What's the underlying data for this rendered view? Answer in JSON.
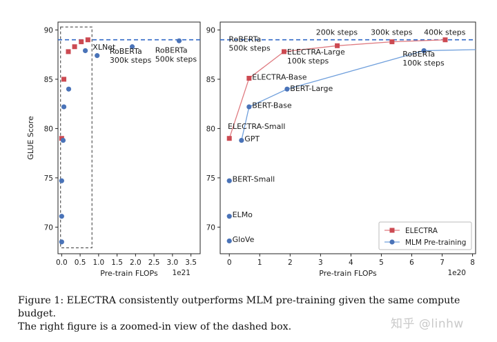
{
  "caption": {
    "line1": "Figure 1: ELECTRA consistently outperforms MLM pre-training given the same compute budget.",
    "line2": "The right figure is a zoomed-in view of the dashed box."
  },
  "watermark": "知乎 @linhw",
  "colors": {
    "electra": "#cc4a52",
    "mlm": "#4a73b8",
    "mlm_line": "#6f9fdc",
    "electra_line": "#df7a80",
    "dashed": "#2f67c7"
  },
  "chart_data": [
    {
      "panel": "left",
      "type": "scatter",
      "xlabel": "Pre-train FLOPs",
      "ylabel": "GLUE Score",
      "x_offset_label": "1e21",
      "xlim": [
        -0.1,
        3.75
      ],
      "ylim": [
        67.3,
        90.8
      ],
      "xticks": [
        0.0,
        0.5,
        1.0,
        1.5,
        2.0,
        2.5,
        3.0,
        3.5
      ],
      "xtick_labels": [
        "0.0",
        "0.5",
        "1.0",
        "1.5",
        "2.0",
        "2.5",
        "3.0",
        "3.5"
      ],
      "yticks": [
        70,
        75,
        80,
        85,
        90
      ],
      "hline": 89.0,
      "zoom_box": {
        "x": [
          -0.03,
          0.82
        ],
        "y": [
          67.9,
          90.3
        ]
      },
      "series": [
        {
          "name": "ELECTRA",
          "marker": "square",
          "points": [
            [
              0.0,
              79.0
            ],
            [
              0.06,
              85.0
            ],
            [
              0.18,
              87.8
            ],
            [
              0.35,
              88.3
            ],
            [
              0.53,
              88.8
            ],
            [
              0.71,
              89.0
            ]
          ]
        },
        {
          "name": "MLM Pre-training",
          "marker": "circle",
          "points": [
            [
              0.0,
              68.5
            ],
            [
              0.0,
              71.1
            ],
            [
              0.0,
              74.7
            ],
            [
              0.04,
              78.8
            ],
            [
              0.06,
              82.2
            ],
            [
              0.19,
              84.0
            ],
            [
              0.64,
              87.9
            ],
            [
              0.96,
              87.4
            ],
            [
              1.91,
              88.3
            ],
            [
              3.18,
              88.9
            ]
          ]
        }
      ],
      "annotations": [
        {
          "text": [
            "XLNet"
          ],
          "x": 0.84,
          "y": 88.0
        },
        {
          "text": [
            "RoBERTa",
            "300k steps"
          ],
          "x": 1.3,
          "y": 87.6
        },
        {
          "text": [
            "RoBERTa",
            "500k steps"
          ],
          "x": 2.53,
          "y": 87.7
        }
      ]
    },
    {
      "panel": "right",
      "type": "line",
      "xlabel": "Pre-train FLOPs",
      "x_offset_label": "1e20",
      "xlim": [
        -0.3,
        8.1
      ],
      "ylim": [
        67.3,
        90.8
      ],
      "xticks": [
        0,
        1,
        2,
        3,
        4,
        5,
        6,
        7,
        8
      ],
      "xtick_labels": [
        "0",
        "1",
        "2",
        "3",
        "4",
        "5",
        "6",
        "7",
        "8"
      ],
      "yticks": [
        70,
        75,
        80,
        85,
        90
      ],
      "hline": 89.0,
      "series": [
        {
          "name": "ELECTRA",
          "marker": "square",
          "points": [
            [
              0.0,
              79.0
            ],
            [
              0.65,
              85.1
            ],
            [
              1.8,
              87.8
            ],
            [
              3.55,
              88.4
            ],
            [
              5.35,
              88.8
            ],
            [
              7.1,
              89.0
            ]
          ]
        },
        {
          "name": "MLM Pre-training",
          "marker": "circle",
          "points": [
            [
              0.4,
              78.8
            ],
            [
              0.65,
              82.2
            ],
            [
              1.9,
              84.0
            ],
            [
              6.4,
              87.9
            ]
          ]
        },
        {
          "name": "MLM Pre-training (unconnected)",
          "marker": "circle",
          "points": [
            [
              0.0,
              74.7
            ],
            [
              0.0,
              71.1
            ],
            [
              0.0,
              68.6
            ]
          ]
        }
      ],
      "annotations": [
        {
          "text": [
            "RoBERTa",
            "500k steps"
          ],
          "x": -0.02,
          "y": 88.8
        },
        {
          "text": [
            "200k steps"
          ],
          "x": 2.85,
          "y": 89.5
        },
        {
          "text": [
            "300k steps"
          ],
          "x": 4.65,
          "y": 89.5
        },
        {
          "text": [
            "400k steps"
          ],
          "x": 6.4,
          "y": 89.5
        },
        {
          "text": [
            "ELECTRA-Large",
            "100k steps"
          ],
          "x": 1.9,
          "y": 87.5
        },
        {
          "text": [
            "RoBERTa",
            "100k steps"
          ],
          "x": 5.7,
          "y": 87.3
        },
        {
          "text": [
            "ELECTRA-Base"
          ],
          "x": 0.75,
          "y": 84.95
        },
        {
          "text": [
            "BERT-Large"
          ],
          "x": 2.0,
          "y": 83.8
        },
        {
          "text": [
            "BERT-Base"
          ],
          "x": 0.75,
          "y": 82.1
        },
        {
          "text": [
            "ELECTRA-Small"
          ],
          "x": -0.05,
          "y": 79.95
        },
        {
          "text": [
            "GPT"
          ],
          "x": 0.5,
          "y": 78.7
        },
        {
          "text": [
            "BERT-Small"
          ],
          "x": 0.1,
          "y": 74.6
        },
        {
          "text": [
            "ELMo"
          ],
          "x": 0.1,
          "y": 71.0
        },
        {
          "text": [
            "GloVe"
          ],
          "x": 0.1,
          "y": 68.5
        }
      ],
      "legend": {
        "placement": "bottom-right",
        "entries": [
          "ELECTRA",
          "MLM Pre-training"
        ]
      }
    }
  ]
}
